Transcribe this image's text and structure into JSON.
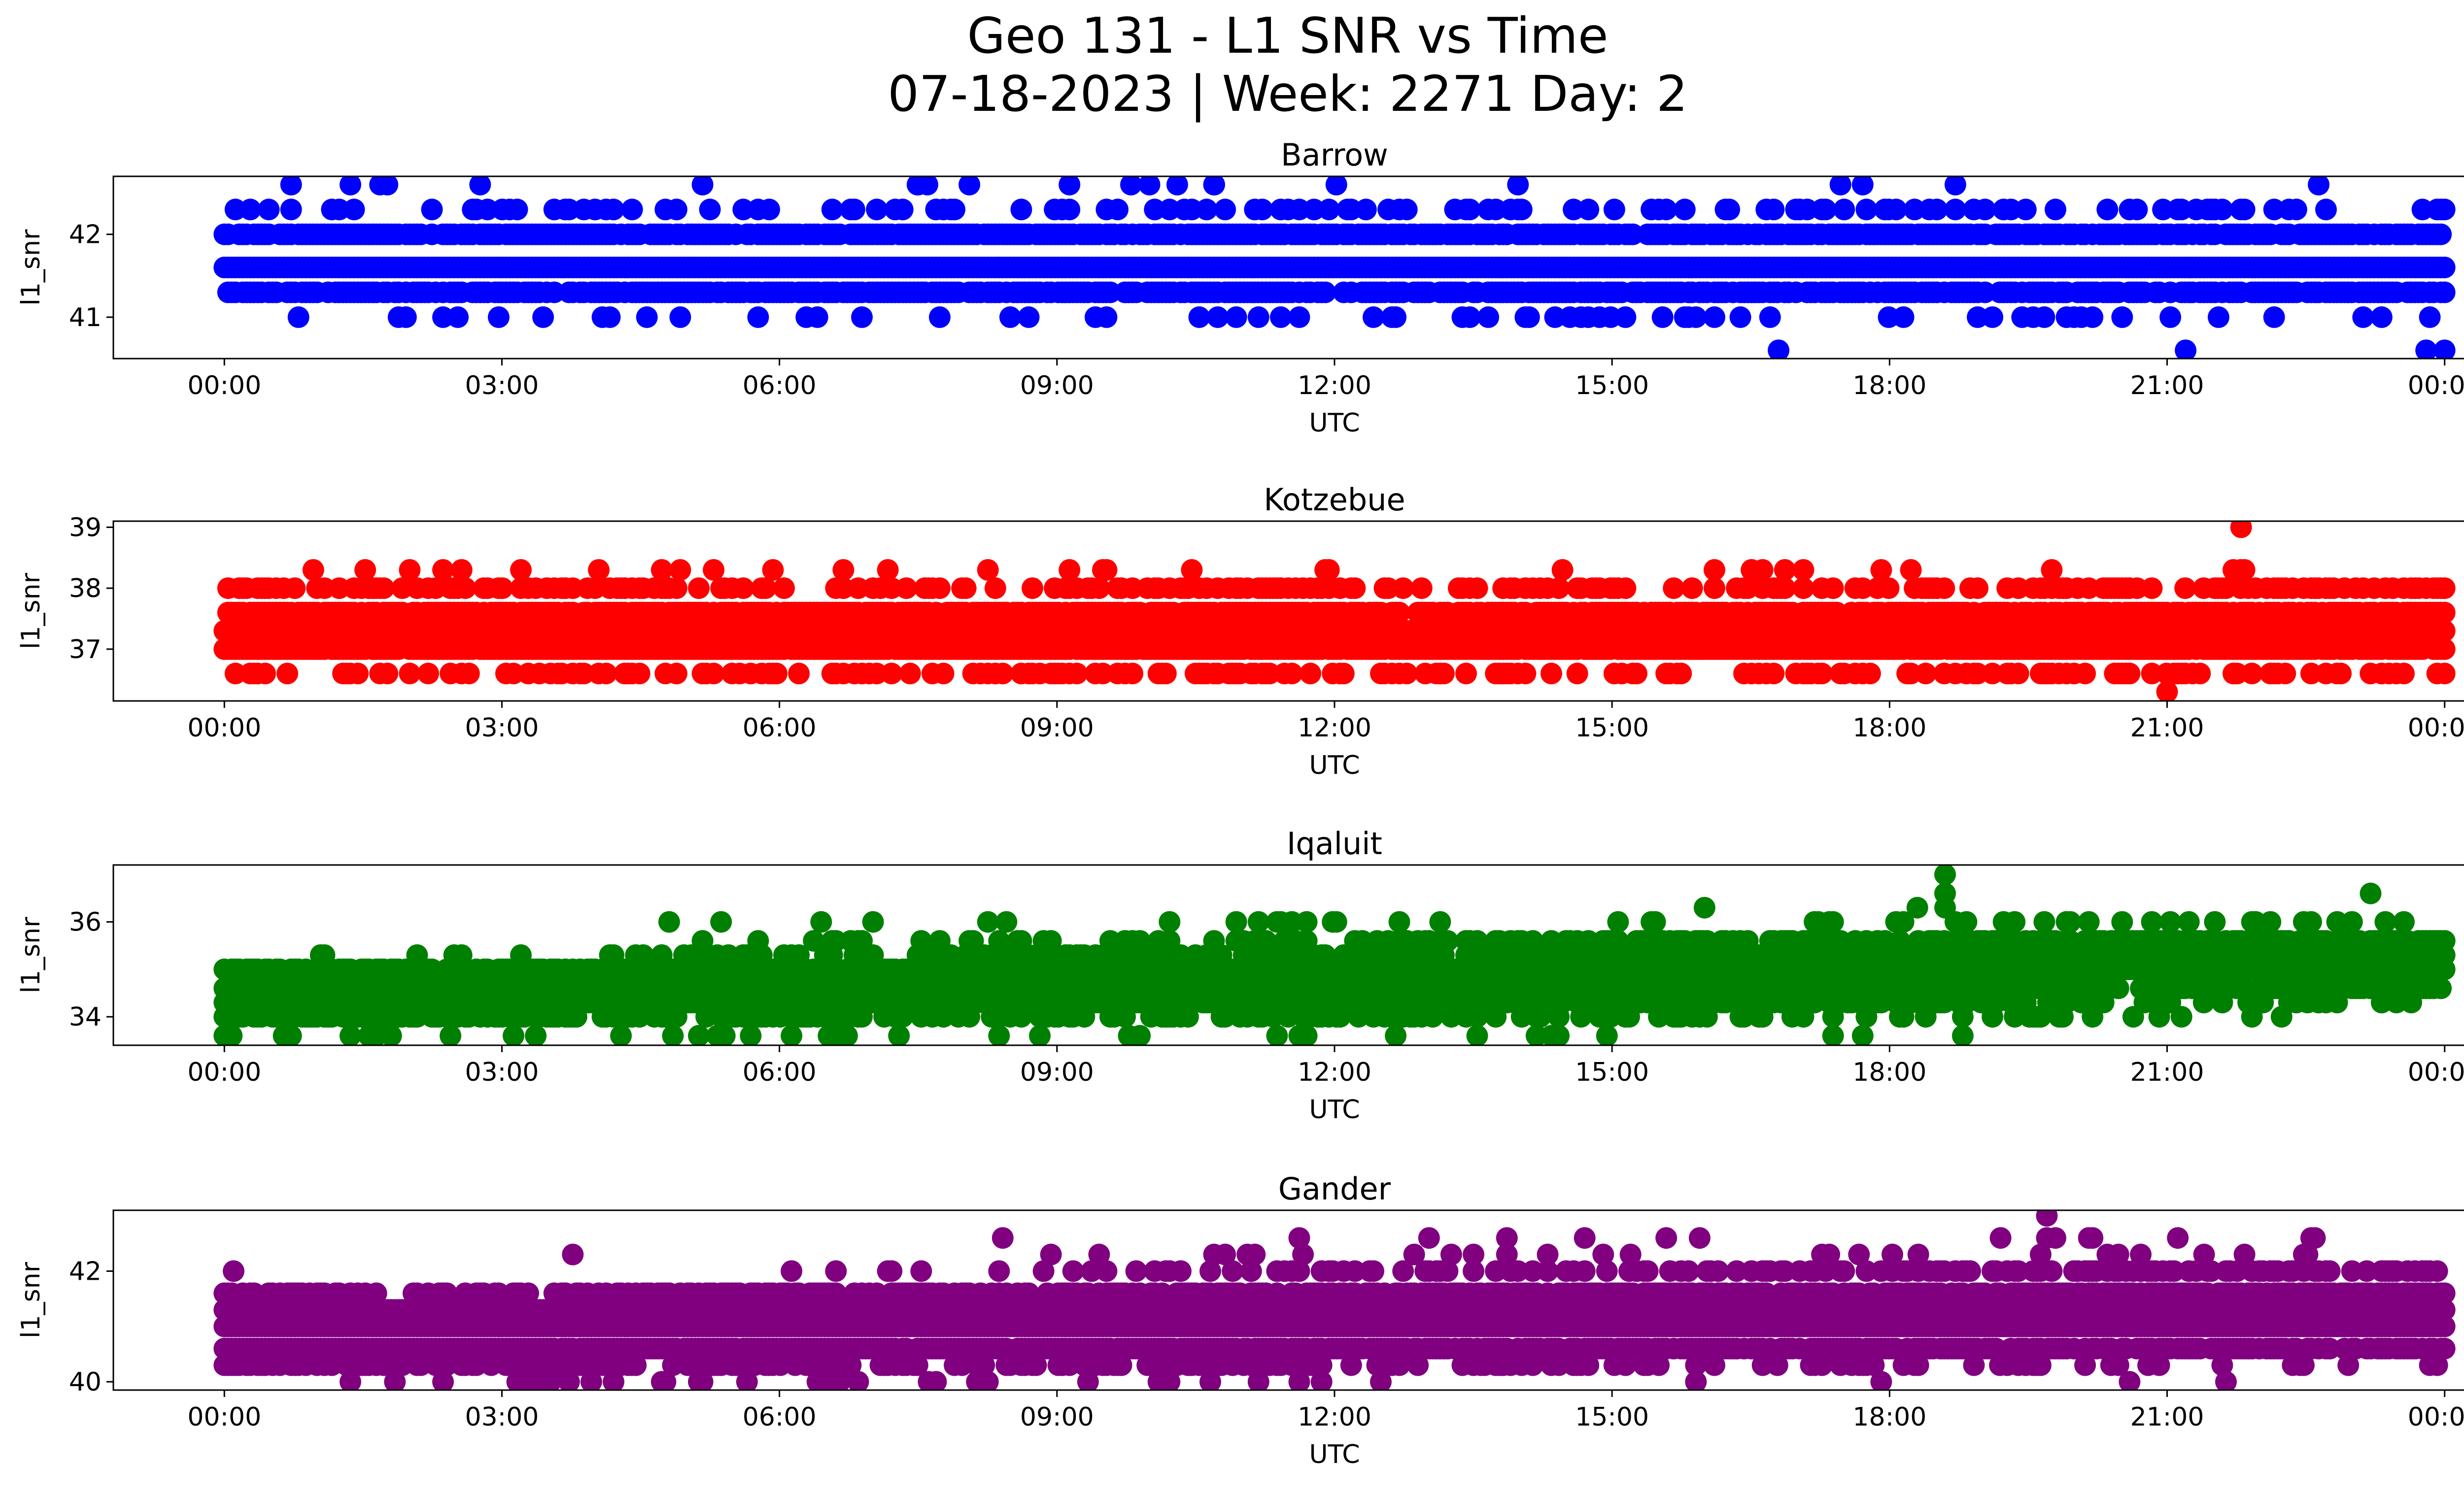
{
  "figure": {
    "title_line1": "Geo 131 - L1 SNR vs Time",
    "title_line2": "07-18-2023 | Week: 2271 Day: 2"
  },
  "chart_data": [
    {
      "type": "scatter",
      "title": "Barrow",
      "xlabel": "UTC",
      "ylabel": "l1_snr",
      "color": "#0000ff",
      "xticks": [
        "00:00",
        "03:00",
        "06:00",
        "09:00",
        "12:00",
        "15:00",
        "18:00",
        "21:00",
        "00:00"
      ],
      "xlim_hours": [
        -1.2,
        25.2
      ],
      "ylim": [
        40.5,
        42.7
      ],
      "yticks": [
        41,
        42
      ],
      "grid": false,
      "levels": [
        41.0,
        41.3,
        41.6,
        42.0,
        42.3,
        42.6
      ],
      "level_density": [
        0.12,
        0.78,
        1.0,
        0.85,
        0.25,
        0.04
      ],
      "density_trend": [
        0,
        0,
        0,
        0,
        0,
        0
      ],
      "outliers": [
        {
          "x": 16.8,
          "y": 40.6
        },
        {
          "x": 21.2,
          "y": 40.6
        },
        {
          "x": 23.8,
          "y": 40.6
        },
        {
          "x": 24.0,
          "y": 40.6
        },
        {
          "x": 7.5,
          "y": 42.6
        },
        {
          "x": 7.6,
          "y": 42.6
        },
        {
          "x": 9.8,
          "y": 42.6
        },
        {
          "x": 10.0,
          "y": 42.6
        },
        {
          "x": 10.3,
          "y": 42.6
        },
        {
          "x": 10.7,
          "y": 42.6
        }
      ]
    },
    {
      "type": "scatter",
      "title": "Kotzebue",
      "xlabel": "UTC",
      "ylabel": "l1_snr",
      "color": "#ff0000",
      "xticks": [
        "00:00",
        "03:00",
        "06:00",
        "09:00",
        "12:00",
        "15:00",
        "18:00",
        "21:00",
        "00:00"
      ],
      "xlim_hours": [
        -1.2,
        25.2
      ],
      "ylim": [
        36.15,
        39.1
      ],
      "yticks": [
        37,
        38,
        39
      ],
      "grid": false,
      "levels": [
        36.6,
        37.0,
        37.3,
        37.6,
        38.0,
        38.3
      ],
      "level_density": [
        0.3,
        0.95,
        1.0,
        0.85,
        0.35,
        0.05
      ],
      "density_trend": [
        0,
        0,
        0,
        0,
        0,
        0
      ],
      "outliers": [
        {
          "x": 21.8,
          "y": 39.0
        },
        {
          "x": 21.0,
          "y": 36.3
        }
      ]
    },
    {
      "type": "scatter",
      "title": "Iqaluit",
      "xlabel": "UTC",
      "ylabel": "l1_snr",
      "color": "#008000",
      "xticks": [
        "00:00",
        "03:00",
        "06:00",
        "09:00",
        "12:00",
        "15:00",
        "18:00",
        "21:00",
        "00:00"
      ],
      "xlim_hours": [
        -1.2,
        25.2
      ],
      "ylim": [
        33.4,
        37.2
      ],
      "yticks": [
        34,
        36
      ],
      "grid": false,
      "levels": [
        33.6,
        34.0,
        34.3,
        34.6,
        35.0,
        35.3,
        35.6,
        36.0
      ],
      "level_density": [
        0.1,
        0.35,
        0.7,
        0.85,
        0.85,
        0.6,
        0.3,
        0.08
      ],
      "density_trend": [
        -0.1,
        -0.35,
        -0.6,
        -0.2,
        0.25,
        0.6,
        0.5,
        0.1
      ],
      "outliers": [
        {
          "x": 18.6,
          "y": 37.0
        },
        {
          "x": 18.6,
          "y": 36.6
        },
        {
          "x": 18.6,
          "y": 36.3
        },
        {
          "x": 18.3,
          "y": 36.3
        },
        {
          "x": 16.0,
          "y": 36.3
        },
        {
          "x": 23.2,
          "y": 36.6
        }
      ]
    },
    {
      "type": "scatter",
      "title": "Gander",
      "xlabel": "UTC",
      "ylabel": "l1_snr",
      "color": "#800080",
      "xticks": [
        "00:00",
        "03:00",
        "06:00",
        "09:00",
        "12:00",
        "15:00",
        "18:00",
        "21:00",
        "00:00"
      ],
      "xlim_hours": [
        -1.2,
        25.2
      ],
      "ylim": [
        39.85,
        43.1
      ],
      "yticks": [
        40,
        42
      ],
      "grid": false,
      "levels": [
        40.0,
        40.3,
        40.6,
        41.0,
        41.3,
        41.6,
        42.0,
        42.3,
        42.6
      ],
      "level_density": [
        0.06,
        0.35,
        0.85,
        1.0,
        1.0,
        0.65,
        0.2,
        0.04,
        0.02
      ],
      "density_trend": [
        -0.05,
        -0.3,
        -0.2,
        0,
        0,
        0.2,
        0.3,
        0.05,
        0.03
      ],
      "outliers": [
        {
          "x": 19.7,
          "y": 43.0
        },
        {
          "x": 19.7,
          "y": 42.6
        },
        {
          "x": 19.2,
          "y": 42.6
        },
        {
          "x": 15.2,
          "y": 42.3
        },
        {
          "x": 21.4,
          "y": 42.3
        },
        {
          "x": 0.1,
          "y": 42.0
        }
      ]
    }
  ]
}
